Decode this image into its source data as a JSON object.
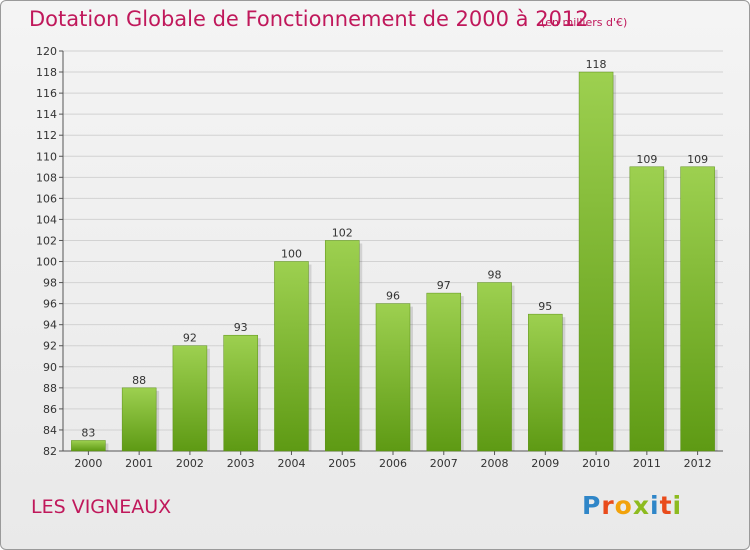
{
  "header": {
    "title": "Dotation Globale de Fonctionnement de 2000 à 2012",
    "unit": "(en milliers d'€)"
  },
  "footer": {
    "commune": "LES VIGNEAUX",
    "logo_text": "Proxiti"
  },
  "colors": {
    "title": "#c0185b",
    "bar_top": "#9dd050",
    "bar_bottom": "#5e9a14",
    "grid": "#d2d2d2",
    "background": "#eeeeee"
  },
  "chart_data": {
    "type": "bar",
    "title": "Dotation Globale de Fonctionnement de 2000 à 2012",
    "subtitle": "(en milliers d'€)",
    "xlabel": "",
    "ylabel": "",
    "ylim": [
      82,
      120
    ],
    "yticks": [
      82,
      84,
      86,
      88,
      90,
      92,
      94,
      96,
      98,
      100,
      102,
      104,
      106,
      108,
      110,
      112,
      114,
      116,
      118,
      120
    ],
    "grid": true,
    "categories": [
      "2000",
      "2001",
      "2002",
      "2003",
      "2004",
      "2005",
      "2006",
      "2007",
      "2008",
      "2009",
      "2010",
      "2011",
      "2012"
    ],
    "values": [
      83,
      88,
      92,
      93,
      100,
      102,
      96,
      97,
      98,
      95,
      118,
      109,
      109
    ]
  }
}
